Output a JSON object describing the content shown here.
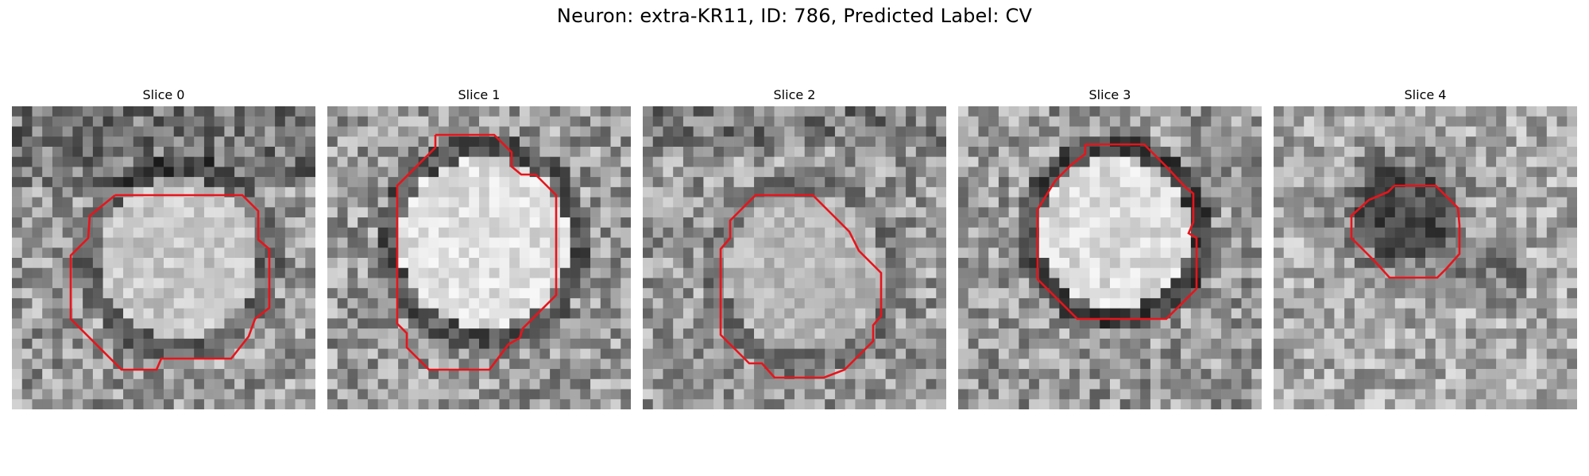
{
  "figure": {
    "title": "Neuron: extra-KR11, ID: 786, Predicted Label: CV"
  },
  "colors": {
    "contour": "#e8141b",
    "background": "#ffffff"
  },
  "panels": [
    {
      "title": "Slice 0",
      "seed": 11,
      "center_brightness": 0.78,
      "ring_darkness": 0.25,
      "contour": "large octagon"
    },
    {
      "title": "Slice 1",
      "seed": 23,
      "center_brightness": 0.88,
      "ring_darkness": 0.35,
      "contour": "large octagon"
    },
    {
      "title": "Slice 2",
      "seed": 37,
      "center_brightness": 0.72,
      "ring_darkness": 0.15,
      "contour": "large octagon"
    },
    {
      "title": "Slice 3",
      "seed": 41,
      "center_brightness": 0.86,
      "ring_darkness": 0.45,
      "contour": "large octagon"
    },
    {
      "title": "Slice 4",
      "seed": 53,
      "center_brightness": 0.3,
      "ring_darkness": 0.1,
      "contour": "small octagon"
    }
  ]
}
